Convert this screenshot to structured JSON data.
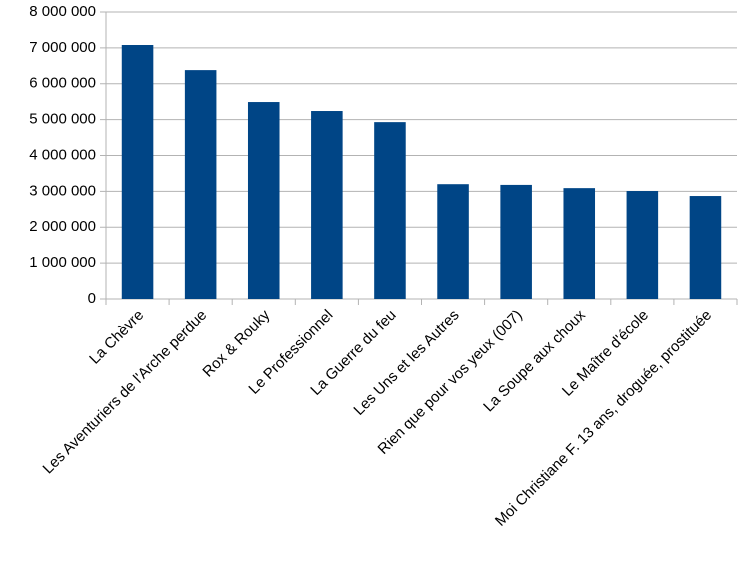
{
  "chart_data": {
    "type": "bar",
    "categories": [
      "La Chèvre",
      "Les Aventuriers de l'Arche perdue",
      "Rox & Rouky",
      "Le Professionnel",
      "La Guerre du feu",
      "Les Uns et les Autres",
      "Rien que pour vos yeux (007)",
      "La Soupe aux choux",
      "Le Maître d'école",
      "Moi Christiane F. 13 ans, droguée, prostituée"
    ],
    "values": [
      7080000,
      6380000,
      5490000,
      5240000,
      4930000,
      3200000,
      3180000,
      3090000,
      3010000,
      2870000
    ],
    "color": "#004586",
    "ylim": [
      0,
      8000000
    ],
    "yticks": [
      {
        "value": 0,
        "label": "0"
      },
      {
        "value": 1000000,
        "label": "1 000 000"
      },
      {
        "value": 2000000,
        "label": "2 000 000"
      },
      {
        "value": 3000000,
        "label": "3 000 000"
      },
      {
        "value": 4000000,
        "label": "4 000 000"
      },
      {
        "value": 5000000,
        "label": "5 000 000"
      },
      {
        "value": 6000000,
        "label": "6 000 000"
      },
      {
        "value": 7000000,
        "label": "7 000 000"
      },
      {
        "value": 8000000,
        "label": "8 000 000"
      }
    ],
    "grid": true
  }
}
